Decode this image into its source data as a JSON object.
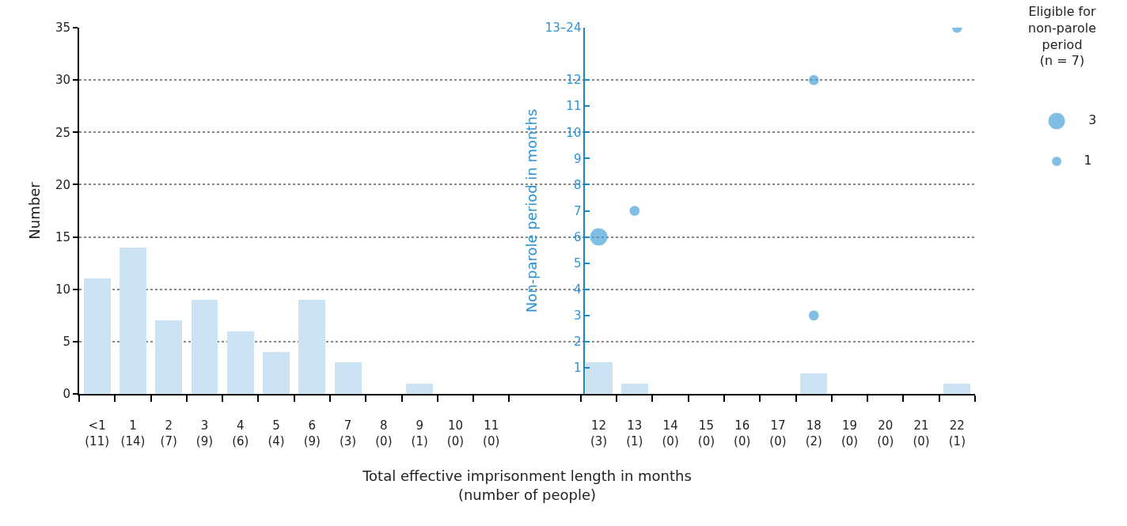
{
  "chart_data": {
    "type": "bar",
    "categories": [
      "<1\n(11)",
      "1\n(14)",
      "2\n(7)",
      "3\n(9)",
      "4\n(6)",
      "5\n(4)",
      "6\n(9)",
      "7\n(3)",
      "8\n(0)",
      "9\n(1)",
      "10\n(0)",
      "11\n(0)",
      null,
      null,
      "12\n(3)",
      "13\n(1)",
      "14\n(0)",
      "15\n(0)",
      "16\n(0)",
      "17\n(0)",
      "18\n(2)",
      "19\n(0)",
      "20\n(0)",
      "21\n(0)",
      "22\n(1)"
    ],
    "series": [
      {
        "type": "bar",
        "color": "#cce3f3",
        "values": [
          11,
          14,
          7,
          9,
          6,
          4,
          9,
          3,
          0,
          1,
          0,
          0,
          null,
          null,
          3,
          1,
          0,
          0,
          0,
          0,
          2,
          0,
          0,
          0,
          1
        ]
      },
      {
        "type": "bubble",
        "axis": "y2",
        "color": "#4ba3d9",
        "x": [
          "12\n(3)",
          "13\n(1)",
          "18\n(2)",
          "18\n(2)",
          "22\n(1)"
        ],
        "values": [
          6,
          7,
          12,
          3,
          14
        ],
        "sizes": [
          3,
          1,
          1,
          1,
          1
        ]
      }
    ],
    "ylabel": "Number",
    "y2label": "Non-parole period in months",
    "xlabel": "Total effective imprisonment length in months\n(number of people)",
    "ylim": [
      0,
      35
    ],
    "yticks": [
      0,
      5,
      10,
      15,
      20,
      25,
      30,
      35
    ],
    "y2lim": [
      0,
      14
    ],
    "y2ticks": [
      1,
      2,
      3,
      4,
      5,
      6,
      7,
      8,
      9,
      10,
      11,
      12,
      {
        "value": 14,
        "label": "13–24"
      }
    ],
    "legend_title": "Eligible for\nnon-parole\nperiod\n(n = 7)",
    "size_legend": [
      3,
      1
    ],
    "grid": "y"
  }
}
